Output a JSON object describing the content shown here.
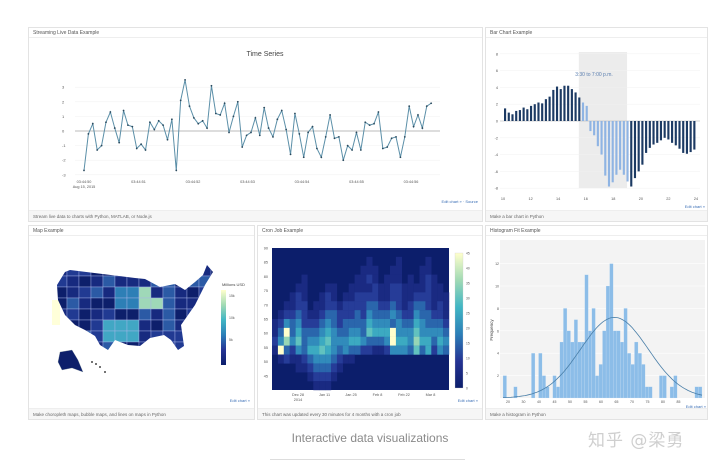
{
  "panels": {
    "streaming": {
      "title": "Streaming Live Data Example",
      "footer": "Stream live data to charts with Python, MATLAB, or Node.js",
      "edit": "Edit chart » · Source"
    },
    "bar": {
      "title": "Bar Chart Example",
      "footer": "Make a bar chart in Python",
      "edit": "Edit chart »"
    },
    "map": {
      "title": "Map Example",
      "footer": "Make choropleth maps, bubble maps, and lines on maps in Python",
      "edit": "Edit chart »"
    },
    "cron": {
      "title": "Cron Job Example",
      "footer": "This chart was updated every 30 minutes for 4 months with a cron job",
      "edit": "Edit chart »"
    },
    "hist": {
      "title": "Histogram Fit Example",
      "footer": "Make a histogram in Python",
      "edit": "Edit chart »"
    }
  },
  "caption": "Interactive data visualizations",
  "watermark": "知乎 @梁勇",
  "chart_data": [
    {
      "id": "timeseries",
      "type": "line",
      "title": "Time Series",
      "color": "#5b8fa8",
      "x_range": [
        0,
        6.37
      ],
      "ylim": [
        -3,
        3
      ],
      "yticks": [
        -3,
        -2,
        -1,
        0,
        1,
        2,
        3
      ],
      "xticks": [
        "03:44:50",
        "03:44:51",
        "03:44:52",
        "03:44:53",
        "03:44:54",
        "03:44:55",
        "03:44:56"
      ],
      "xtick_sub": "Aug 15, 2015",
      "values": [
        -2.7,
        -0.2,
        0.5,
        -1.3,
        -1.0,
        0.6,
        1.3,
        0.2,
        -0.8,
        1.4,
        0.4,
        0.3,
        -1.2,
        -0.9,
        -1.3,
        0.6,
        0.1,
        0.7,
        0.4,
        -0.6,
        0.8,
        -2.7,
        2.1,
        3.5,
        1.7,
        0.9,
        0.5,
        0.7,
        0.2,
        3.1,
        1.2,
        1.1,
        1.9,
        -0.1,
        1.0,
        2.0,
        -1.1,
        -0.3,
        -0.1,
        0.9,
        -0.3,
        1.6,
        0.2,
        -0.4,
        0.8,
        1.4,
        0.1,
        -1.6,
        1.2,
        -0.2,
        -1.8,
        -0.1,
        0.3,
        -1.2,
        -1.8,
        -0.4,
        1.1,
        -0.5,
        -0.4,
        -2.0,
        -1.0,
        -1.3,
        -0.1,
        -1.3,
        0.6,
        0.4,
        0.5,
        1.3,
        -1.2,
        -1.1,
        -0.5,
        -0.4,
        -1.8,
        -0.4,
        1.7,
        0.3,
        1.1,
        0.2,
        1.7,
        1.9
      ]
    },
    {
      "id": "bar",
      "type": "bar",
      "xlim": [
        10,
        24
      ],
      "ylim": [
        -8,
        8
      ],
      "xticks": [
        10,
        12,
        14,
        16,
        18,
        20,
        22,
        24
      ],
      "yticks": [
        -8,
        -6,
        -4,
        -2,
        0,
        2,
        4,
        6,
        8
      ],
      "x_start": 10,
      "x_step": 0.25,
      "highlight": {
        "from": 15.5,
        "to": 19,
        "label": "3:30 to 7:00 p.m."
      },
      "colors": {
        "normal": "#1c3a63",
        "highlight": "#8fb4e3",
        "shade": "#ececec"
      },
      "values": [
        1.5,
        1.0,
        0.8,
        1.2,
        1.3,
        1.6,
        1.4,
        1.8,
        2.0,
        2.2,
        2.1,
        2.6,
        2.9,
        3.7,
        4.1,
        3.8,
        4.2,
        4.2,
        3.8,
        3.4,
        2.8,
        2.2,
        1.8,
        -1.2,
        -1.7,
        -3.0,
        -4.0,
        -6.5,
        -7.8,
        -7.3,
        -6.4,
        -5.8,
        -6.4,
        -7.2,
        -7.8,
        -6.8,
        -6.0,
        -5.2,
        -3.8,
        -3.2,
        -2.8,
        -2.6,
        -2.3,
        -2.0,
        -2.2,
        -2.6,
        -2.9,
        -3.3,
        -3.8,
        -3.9,
        -3.7,
        -3.4
      ]
    },
    {
      "id": "map",
      "type": "choropleth",
      "colorbar_title": "Millions USD",
      "colorbar_ticks": [
        "15k",
        "10k",
        "5k"
      ]
    },
    {
      "id": "heatmap",
      "type": "heatmap",
      "ylim": [
        40,
        90
      ],
      "yticks": [
        45,
        50,
        55,
        60,
        65,
        70,
        75,
        80,
        85,
        90
      ],
      "xticks": [
        "Dec 28",
        "Jan 11",
        "Jan 25",
        "Feb 8",
        "Feb 22",
        "Mar 8"
      ],
      "xtick_sub": "2014",
      "colorbar_ticks": [
        0,
        5,
        10,
        15,
        20,
        25,
        30,
        35,
        40,
        45
      ],
      "z_scale": 5,
      "z_rows": [
        "000000000000000000000000000000",
        "000000000000000010000100001000",
        "000000000000000111001100011000",
        "000001000000001121011101012100",
        "000011000110011112112211112110",
        "000121001210112222112211222111",
        "001122011221222233223212332121",
        "012232112332223243334322433221",
        "124342223432333354443433543332",
        "139353334543344365559444644443",
        "247463445644455433349554755354",
        "193243556543433221124443635243",
        "012112344432110000000000000000",
        "000011233321000000000000000000",
        "000000122210000000000000000000",
        "000000011100000000000000000000"
      ]
    },
    {
      "id": "histogram",
      "type": "bar",
      "ylabel": "Frequency",
      "ylim": [
        0,
        13.5
      ],
      "yticks": [
        2,
        4,
        6,
        8,
        10,
        12
      ],
      "xticks": [
        "20",
        "30",
        "40",
        "45",
        "50",
        "55",
        "60",
        "65",
        "70",
        "75",
        "80",
        "85"
      ],
      "color": "#8cbde8",
      "fit_color": "#4a7fa8",
      "fit_peak": 7.2,
      "fit_mean_frac": 0.56,
      "fit_sd_frac": 0.17,
      "values": [
        2,
        0,
        0,
        1,
        0,
        0,
        0,
        0,
        4,
        0,
        4,
        2,
        1,
        0,
        2,
        1,
        5,
        8,
        6,
        5,
        7,
        5,
        5,
        11,
        6,
        8,
        2,
        3,
        6,
        10,
        12,
        6,
        6,
        5,
        8,
        4,
        3,
        5,
        4,
        3,
        1,
        1,
        0,
        0,
        2,
        2,
        0,
        1,
        2,
        0,
        0,
        0,
        0,
        0,
        1,
        1
      ]
    }
  ]
}
